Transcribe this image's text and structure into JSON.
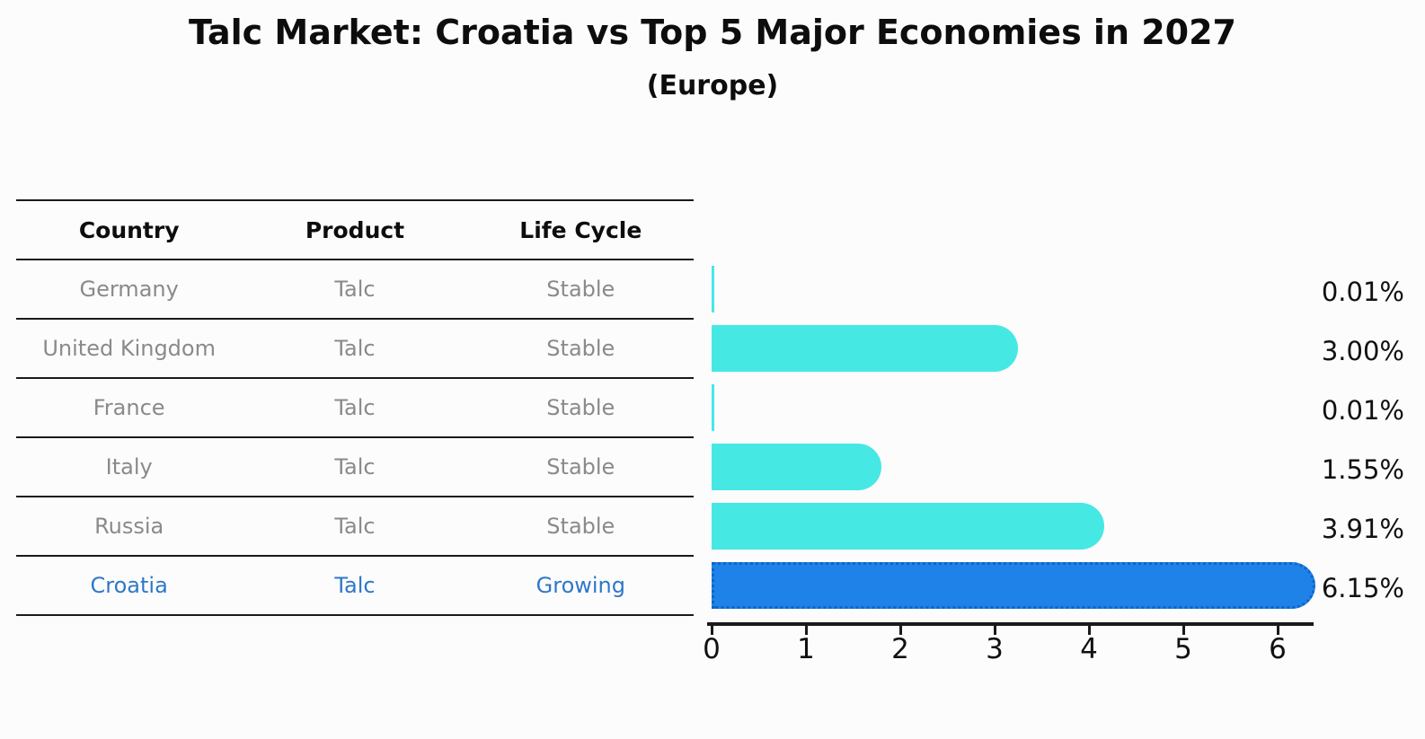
{
  "title": "Talc Market: Croatia vs Top 5 Major Economies in 2027",
  "subtitle": "(Europe)",
  "table": {
    "headers": [
      "Country",
      "Product",
      "Life Cycle"
    ],
    "rows": [
      {
        "country": "Germany",
        "product": "Talc",
        "life_cycle": "Stable",
        "highlight": false
      },
      {
        "country": "United Kingdom",
        "product": "Talc",
        "life_cycle": "Stable",
        "highlight": false
      },
      {
        "country": "France",
        "product": "Talc",
        "life_cycle": "Stable",
        "highlight": false
      },
      {
        "country": "Italy",
        "product": "Talc",
        "life_cycle": "Stable",
        "highlight": false
      },
      {
        "country": "Russia",
        "product": "Talc",
        "life_cycle": "Stable",
        "highlight": false
      },
      {
        "country": "Croatia",
        "product": "Talc",
        "life_cycle": "Growing",
        "highlight": true
      }
    ]
  },
  "chart_data": {
    "type": "bar",
    "orientation": "horizontal",
    "title": "Talc Market: Croatia vs Top 5 Major Economies in 2027",
    "subtitle": "(Europe)",
    "categories": [
      "Germany",
      "United Kingdom",
      "France",
      "Italy",
      "Russia",
      "Croatia"
    ],
    "values": [
      0.01,
      3.0,
      0.01,
      1.55,
      3.91,
      6.15
    ],
    "value_labels": [
      "0.01%",
      "3.00%",
      "0.01%",
      "1.55%",
      "3.91%",
      "6.15%"
    ],
    "x_ticks": [
      "0",
      "1",
      "2",
      "3",
      "4",
      "5",
      "6"
    ],
    "xlim": [
      0,
      6.4
    ],
    "highlight_index": 5,
    "grid": false,
    "legend": false
  },
  "colors": {
    "bar": "#46E8E4",
    "highlight_bar": "#1E82E8",
    "highlight_bar_border": "#1263C8",
    "highlight_text": "#2E78C8",
    "text": "#111111",
    "muted_text": "#8A8A8A",
    "line": "#1A1A1A",
    "background": "#FCFCFC"
  }
}
